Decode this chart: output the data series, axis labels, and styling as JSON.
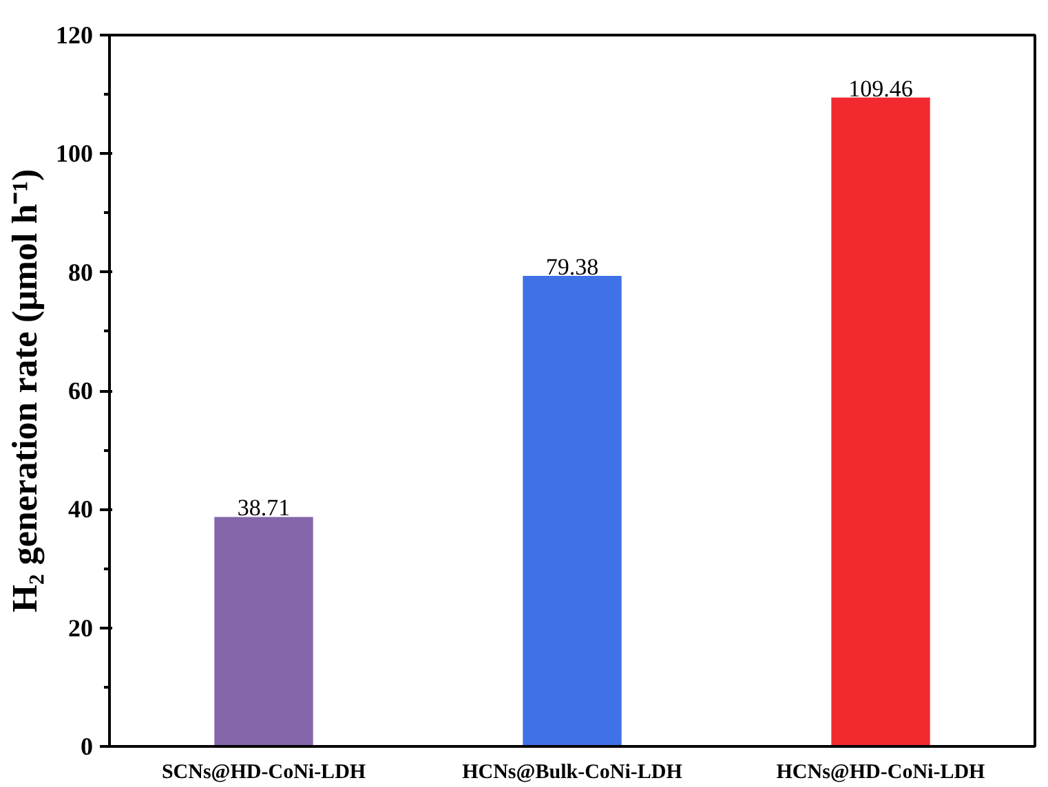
{
  "chart_data": {
    "type": "bar",
    "ylabel": "H₂ generation rate (μmol h⁻¹)",
    "categories": [
      "SCNs@HD-CoNi-LDH",
      "HCNs@Bulk-CoNi-LDH",
      "HCNs@HD-CoNi-LDH"
    ],
    "values": [
      38.71,
      79.38,
      109.46
    ],
    "colors": [
      "#8466aa",
      "#3f72e6",
      "#f22a30"
    ],
    "ylim": [
      0,
      120
    ],
    "yticks": [
      0,
      20,
      40,
      60,
      80,
      100,
      120
    ],
    "data_labels": true,
    "grid": false
  }
}
